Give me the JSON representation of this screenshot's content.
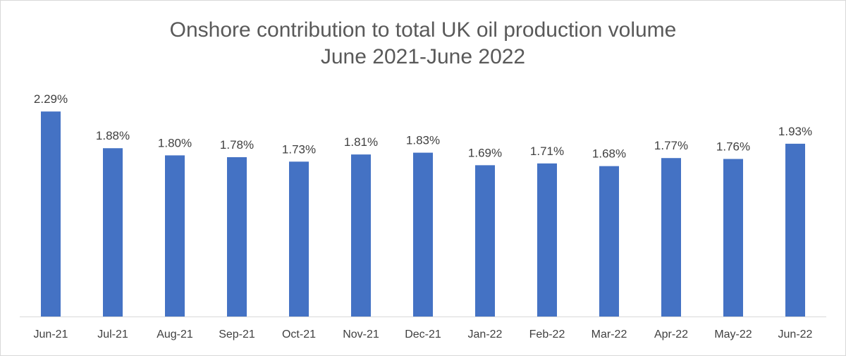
{
  "chart_data": {
    "type": "bar",
    "title": "Onshore contribution to total UK oil production volume",
    "subtitle": "June 2021-June 2022",
    "xlabel": "",
    "ylabel": "",
    "categories": [
      "Jun-21",
      "Jul-21",
      "Aug-21",
      "Sep-21",
      "Oct-21",
      "Nov-21",
      "Dec-21",
      "Jan-22",
      "Feb-22",
      "Mar-22",
      "Apr-22",
      "May-22",
      "Jun-22"
    ],
    "values": [
      2.29,
      1.88,
      1.8,
      1.78,
      1.73,
      1.81,
      1.83,
      1.69,
      1.71,
      1.68,
      1.77,
      1.76,
      1.93
    ],
    "data_labels": [
      "2.29%",
      "1.88%",
      "1.80%",
      "1.78%",
      "1.73%",
      "1.81%",
      "1.83%",
      "1.69%",
      "1.71%",
      "1.68%",
      "1.77%",
      "1.76%",
      "1.93%"
    ],
    "ylim": [
      0,
      2.5
    ],
    "grid": false,
    "legend": "none",
    "bar_color": "#4472c4"
  }
}
